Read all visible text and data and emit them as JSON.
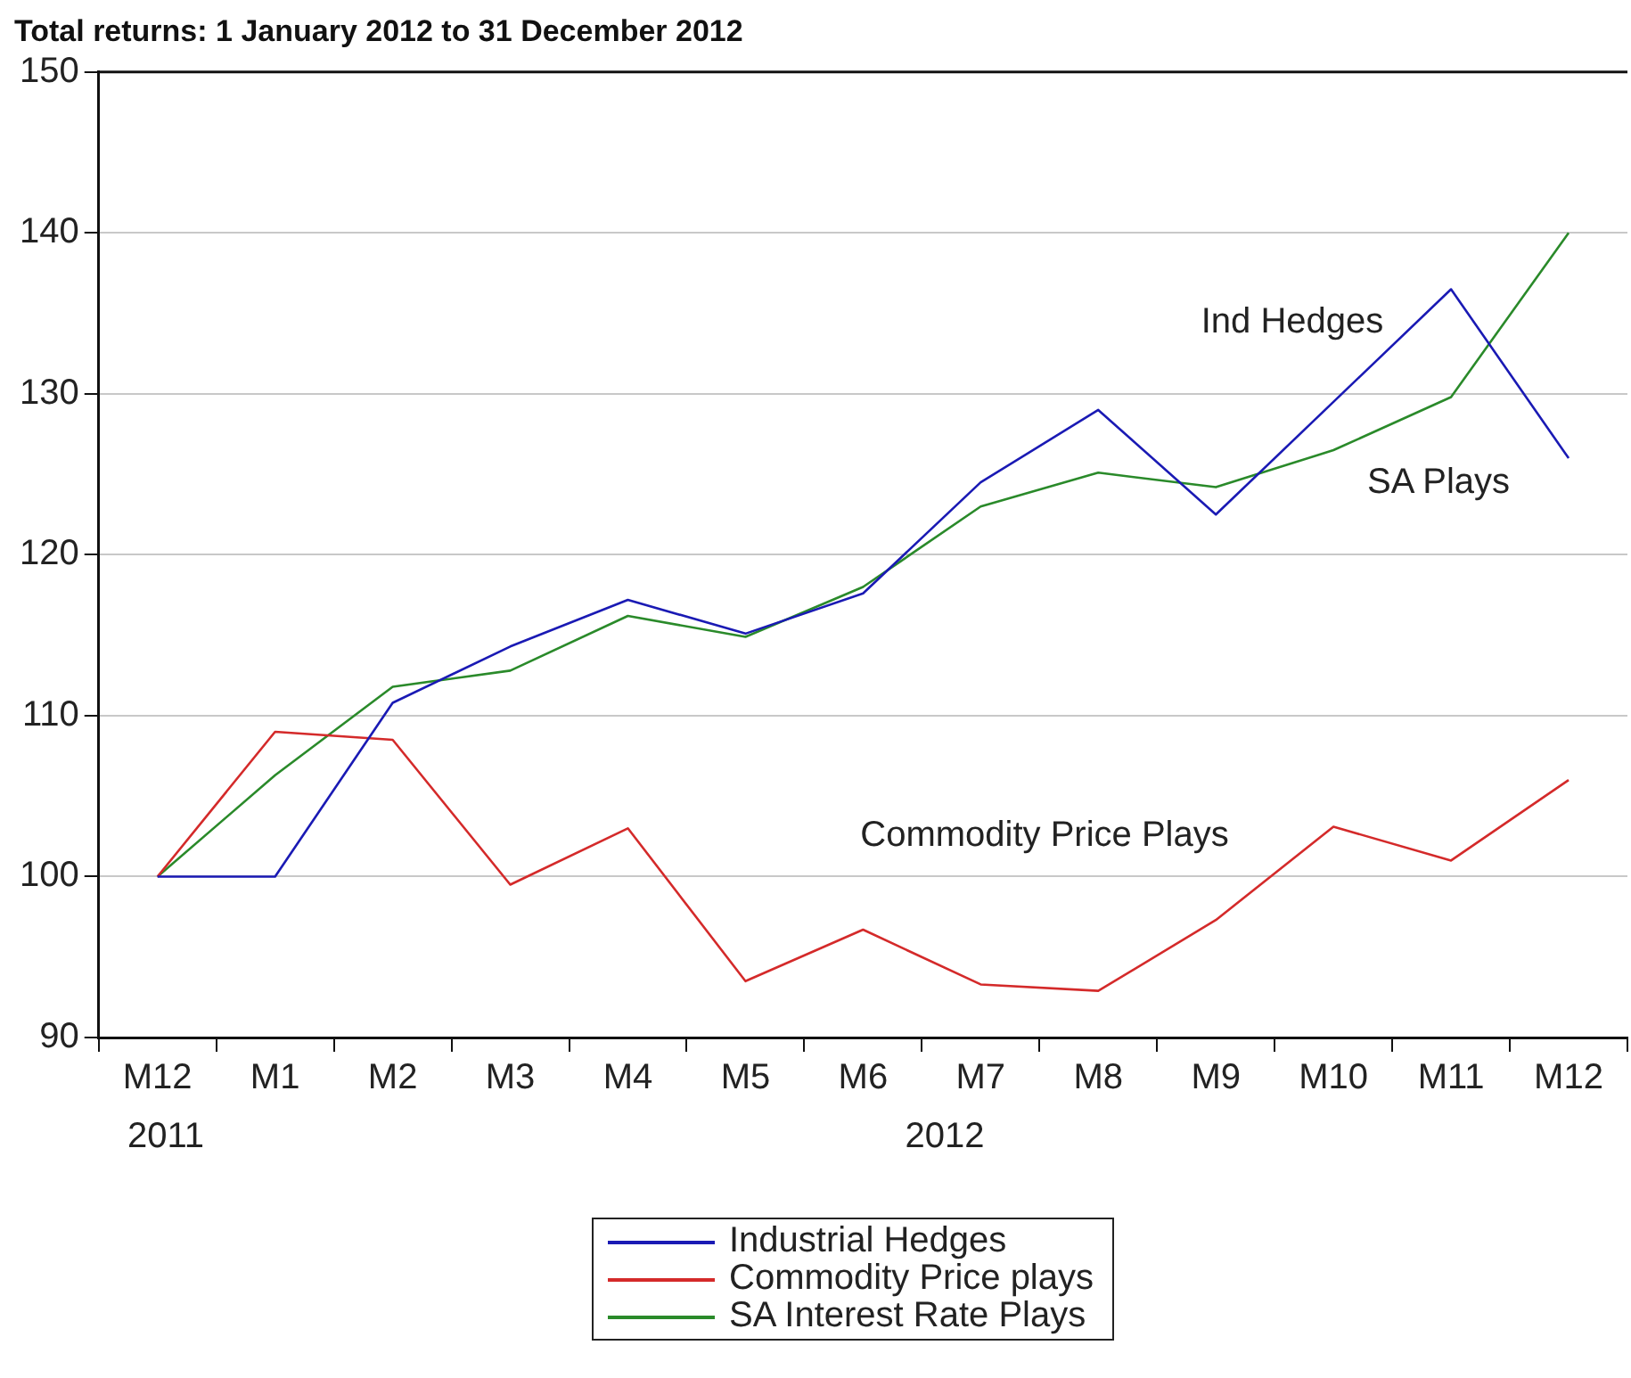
{
  "chart_data": {
    "type": "line",
    "title": "Total returns: 1 January 2012 to 31 December 2012",
    "categories": [
      "M12",
      "M1",
      "M2",
      "M3",
      "M4",
      "M5",
      "M6",
      "M7",
      "M8",
      "M9",
      "M10",
      "M11",
      "M12"
    ],
    "series": [
      {
        "name": "Industrial Hedges",
        "color": "#1a1ab4",
        "values": [
          100,
          100,
          110.8,
          114.3,
          117.2,
          115.1,
          117.6,
          124.5,
          129,
          122.5,
          129.5,
          136.5,
          126
        ]
      },
      {
        "name": "Commodity Price plays",
        "color": "#d42a2a",
        "values": [
          100,
          109,
          108.5,
          99.5,
          103,
          93.5,
          96.7,
          93.3,
          92.9,
          97.3,
          103.1,
          101,
          106
        ]
      },
      {
        "name": "SA Interest Rate Plays",
        "color": "#2a8a2a",
        "values": [
          100,
          106.3,
          111.8,
          112.8,
          116.2,
          114.9,
          118,
          123,
          125.1,
          124.2,
          126.5,
          129.8,
          140
        ]
      }
    ],
    "ylim": [
      90,
      150
    ],
    "yticks": [
      90,
      100,
      110,
      120,
      130,
      140,
      150
    ],
    "grid": "y",
    "legend": "bottom",
    "marker": "none",
    "line_style": "solid",
    "annotations": [
      "2011",
      "2012",
      "Ind Hedges",
      "SA Plays",
      "Commodity Price Plays"
    ]
  }
}
